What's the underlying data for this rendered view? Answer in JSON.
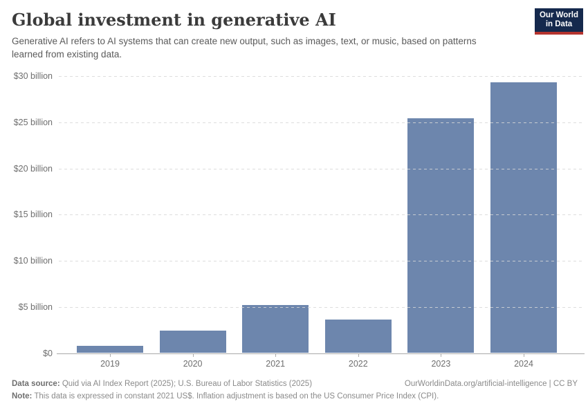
{
  "header": {
    "title": "Global investment in generative AI",
    "subtitle": "Generative AI refers to AI systems that can create new output, such as images, text, or music, based on patterns learned from existing data.",
    "logo": {
      "line1": "Our World",
      "line2": "in Data"
    }
  },
  "chart_data": {
    "type": "bar",
    "title": "Global investment in generative AI",
    "categories": [
      "2019",
      "2020",
      "2021",
      "2022",
      "2023",
      "2024"
    ],
    "values": [
      0.8,
      2.4,
      5.2,
      3.6,
      25.4,
      29.3
    ],
    "unit": "billion US$ (constant 2021)",
    "xlabel": "",
    "ylabel": "",
    "ylim": [
      0,
      30
    ],
    "ytick_step": 5,
    "ytick_labels": [
      "$0",
      "$5 billion",
      "$10 billion",
      "$15 billion",
      "$20 billion",
      "$25 billion",
      "$30 billion"
    ],
    "grid": "horizontal-dashed",
    "legend": "none",
    "bar_color": "#6d86ad"
  },
  "footer": {
    "data_source_label": "Data source:",
    "data_source_text": " Quid via AI Index Report (2025); U.S. Bureau of Labor Statistics (2025)",
    "link": "OurWorldinData.org/artificial-intelligence | CC BY",
    "note_label": "Note:",
    "note_text": " This data is expressed in constant 2021 US$. Inflation adjustment is based on the US Consumer Price Index (CPI)."
  },
  "colors": {
    "bar": "#6d86ad",
    "logo_background": "#15294d",
    "logo_accent": "#b5342f",
    "title_text": "#3b3b3b",
    "axis_text": "#6e6e6e",
    "gridline": "#d7d7d7"
  }
}
